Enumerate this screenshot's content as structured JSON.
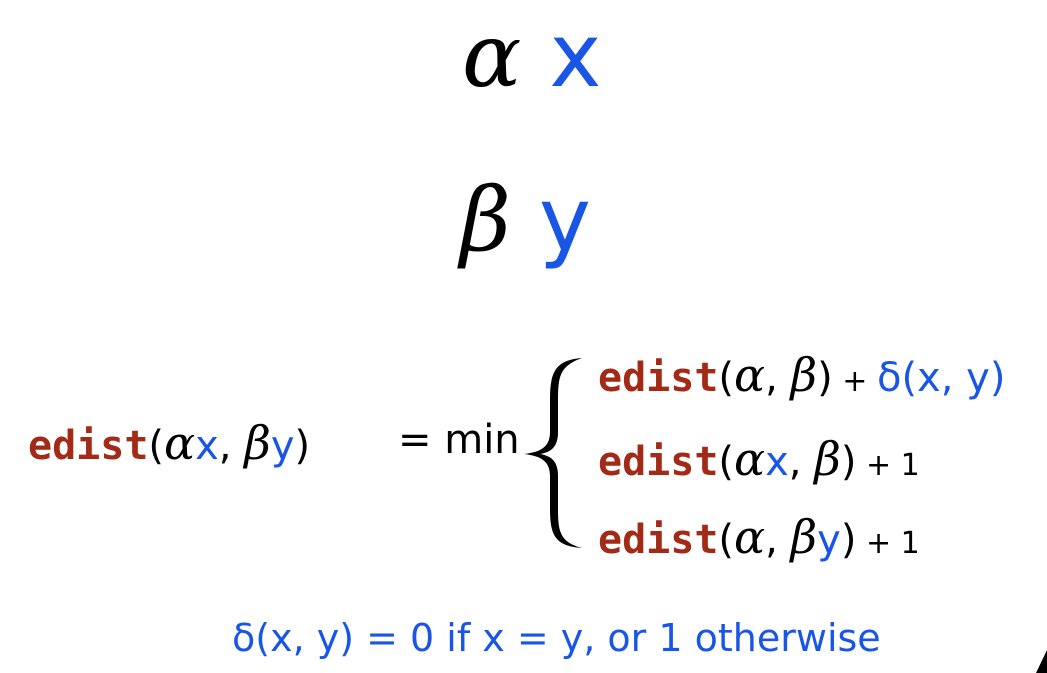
{
  "top": {
    "line1": {
      "greek": "α",
      "symbol": "x"
    },
    "line2": {
      "greek": "β",
      "symbol": "y"
    }
  },
  "equation": {
    "lhs": {
      "fn": "edist",
      "open": "(",
      "a": "α",
      "x": "x",
      "comma": ", ",
      "b": "β",
      "y": "y",
      "close": ")"
    },
    "op": "= min",
    "cases": [
      {
        "fn": "edist",
        "open": "(",
        "arg1": "α",
        "arg1_sym": "",
        "comma": ", ",
        "arg2": "β",
        "arg2_sym": "",
        "close": ")",
        "plus": " + ",
        "tail": "δ(x, y)",
        "tail_color": "blue"
      },
      {
        "fn": "edist",
        "open": "(",
        "arg1": "α",
        "arg1_sym": "x",
        "comma": ", ",
        "arg2": "β",
        "arg2_sym": "",
        "close": ")",
        "plus": " + ",
        "tail": "1",
        "tail_color": "black"
      },
      {
        "fn": "edist",
        "open": "(",
        "arg1": "α",
        "arg1_sym": "",
        "comma": ", ",
        "arg2": "β",
        "arg2_sym": "y",
        "close": ")",
        "plus": " + ",
        "tail": "1",
        "tail_color": "black"
      }
    ]
  },
  "definition": "δ(x, y) = 0 if x = y, or 1 otherwise",
  "colors": {
    "blue": "#1a56e6",
    "red": "#a32a16",
    "black": "#000000"
  }
}
